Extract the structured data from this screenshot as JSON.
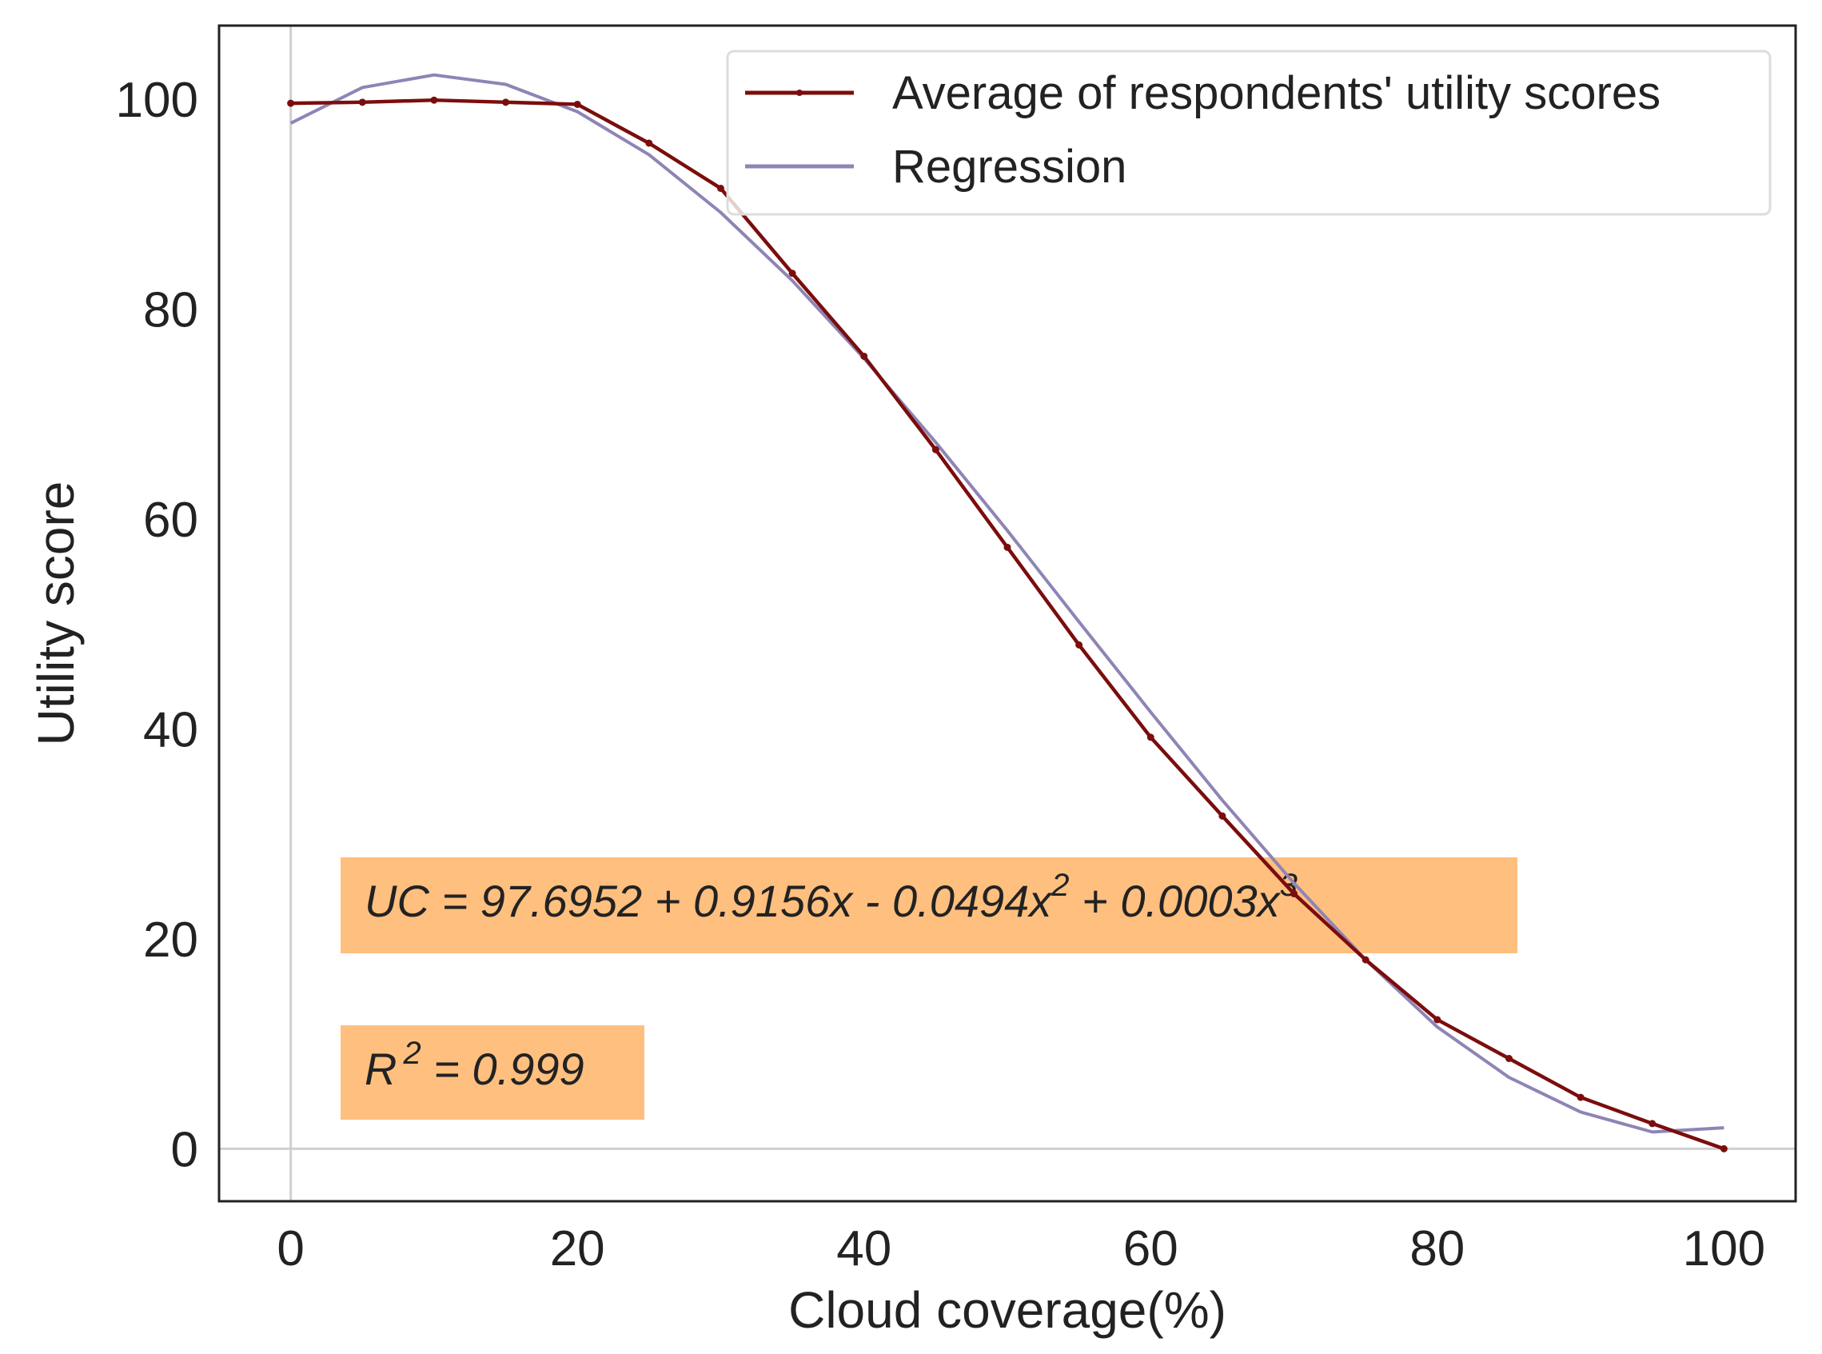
{
  "chart_data": {
    "type": "line",
    "xlabel": "Cloud coverage(%)",
    "ylabel": "Utility score",
    "xlim": [
      -5,
      105
    ],
    "ylim": [
      -5,
      107
    ],
    "xticks": [
      0,
      20,
      40,
      60,
      80,
      100
    ],
    "yticks": [
      0,
      20,
      40,
      60,
      80,
      100
    ],
    "legend_position": "top-right",
    "series": [
      {
        "name": "Average of respondents' utility scores",
        "color": "#7b0d0d",
        "markers": true,
        "x": [
          0,
          5,
          10,
          15,
          20,
          25,
          30,
          35,
          40,
          45,
          50,
          55,
          60,
          65,
          70,
          75,
          80,
          85,
          90,
          95,
          100
        ],
        "y": [
          99.6,
          99.7,
          99.9,
          99.7,
          99.5,
          95.8,
          91.5,
          83.4,
          75.5,
          66.6,
          57.3,
          48.0,
          39.2,
          31.7,
          24.3,
          18.0,
          12.3,
          8.6,
          4.9,
          2.4,
          0.0
        ]
      },
      {
        "name": "Regression",
        "color": "#8f84b5",
        "markers": false,
        "x": [
          0,
          5,
          10,
          15,
          20,
          25,
          30,
          35,
          40,
          45,
          50,
          55,
          60,
          65,
          70,
          75,
          80,
          85,
          90,
          95,
          100
        ],
        "y": [
          97.7,
          101.1,
          102.3,
          101.4,
          98.8,
          94.7,
          89.2,
          82.7,
          75.3,
          67.3,
          58.9,
          50.2,
          41.6,
          33.2,
          25.3,
          18.0,
          11.6,
          6.8,
          3.5,
          1.6,
          2.0
        ]
      }
    ],
    "annotations": [
      {
        "name": "equation",
        "prefix": "UC = 97.6952 + 0.9156x -  0.0494x",
        "sup1": "2",
        "mid": " +  0.0003x",
        "sup2": "3",
        "bg": "#ffbf7f"
      },
      {
        "name": "r-squared",
        "prefix": "R",
        "sup": "2",
        "suffix": " = 0.999",
        "bg": "#ffbf7f"
      }
    ]
  }
}
